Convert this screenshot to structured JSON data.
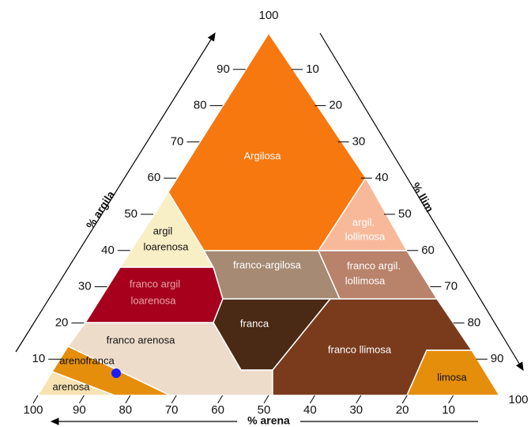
{
  "diagram": {
    "apex_label": 100,
    "corner_label": 100,
    "argila_axis": {
      "label": "% argila",
      "ticks": [
        90,
        80,
        70,
        60,
        50,
        40,
        30,
        20,
        10
      ]
    },
    "llim_axis": {
      "label": "% llim",
      "ticks": [
        10,
        20,
        30,
        40,
        50,
        60,
        70,
        80,
        90
      ]
    },
    "arena_axis": {
      "label": "% arena",
      "ticks": [
        100,
        90,
        80,
        70,
        60,
        50,
        40,
        30,
        20,
        10
      ]
    },
    "regions": [
      {
        "lines": [
          "Argilosa"
        ]
      },
      {
        "lines": [
          "argil",
          "loarenosa"
        ]
      },
      {
        "lines": [
          "argil.",
          "lollimosa"
        ]
      },
      {
        "lines": [
          "franco-argilosa"
        ]
      },
      {
        "lines": [
          "franco argil.",
          "lollimosa"
        ]
      },
      {
        "lines": [
          "franco argil",
          "loarenosa"
        ]
      },
      {
        "lines": [
          "franca"
        ]
      },
      {
        "lines": [
          "franco arenosa"
        ]
      },
      {
        "lines": [
          "franco llimosa"
        ]
      },
      {
        "lines": [
          "arenofranca"
        ]
      },
      {
        "lines": [
          "arenosa"
        ]
      },
      {
        "lines": [
          "limosa"
        ]
      }
    ]
  }
}
